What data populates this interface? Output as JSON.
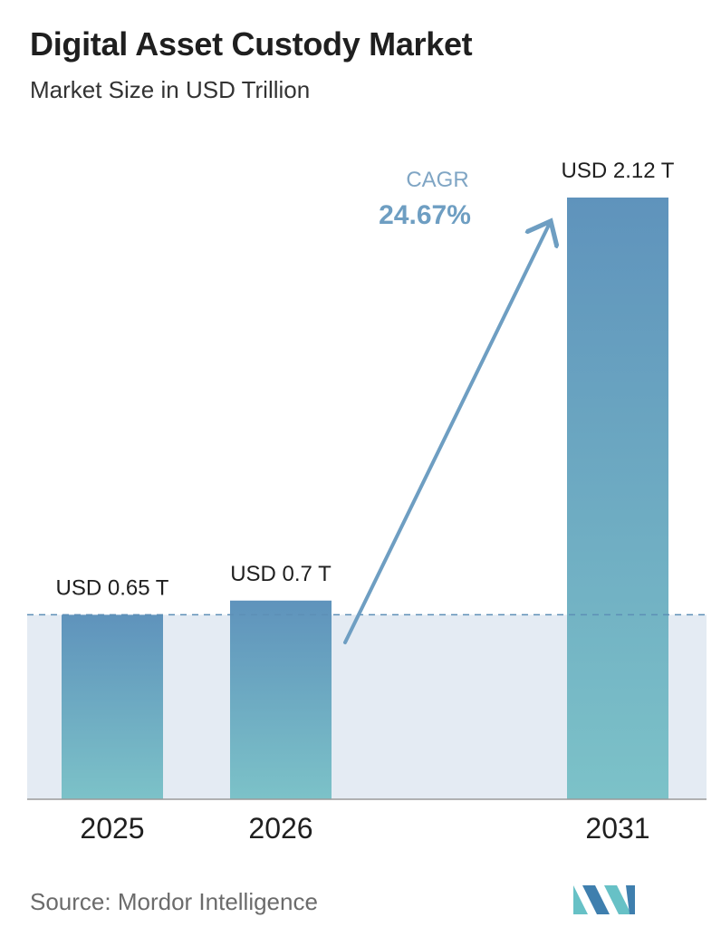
{
  "header": {
    "title": "Digital Asset Custody Market",
    "subtitle": "Market Size in USD Trillion"
  },
  "chart_data": {
    "type": "bar",
    "categories": [
      "2025",
      "2026",
      "2031"
    ],
    "values": [
      0.65,
      0.7,
      2.12
    ],
    "data_labels": [
      "USD 0.65 T",
      "USD 0.7 T",
      "USD 2.12 T"
    ],
    "ylim": [
      0,
      2.12
    ],
    "grid": false,
    "cagr_label": "CAGR",
    "cagr_value": "24.67%"
  },
  "footer": {
    "source": "Source: Mordor Intelligence"
  },
  "colors": {
    "bar_top": "#5f93bc",
    "bar_bottom": "#7cc2c8",
    "band": "#e4ebf3",
    "arrow": "#6e9ec2",
    "cagr_label": "#7fa5c4",
    "cagr_value": "#6e9ec2",
    "baseline": "#9a9a9a",
    "dashed": "#5d8fb6",
    "logo_dark": "#3f7fae",
    "logo_light": "#67c1c6"
  }
}
